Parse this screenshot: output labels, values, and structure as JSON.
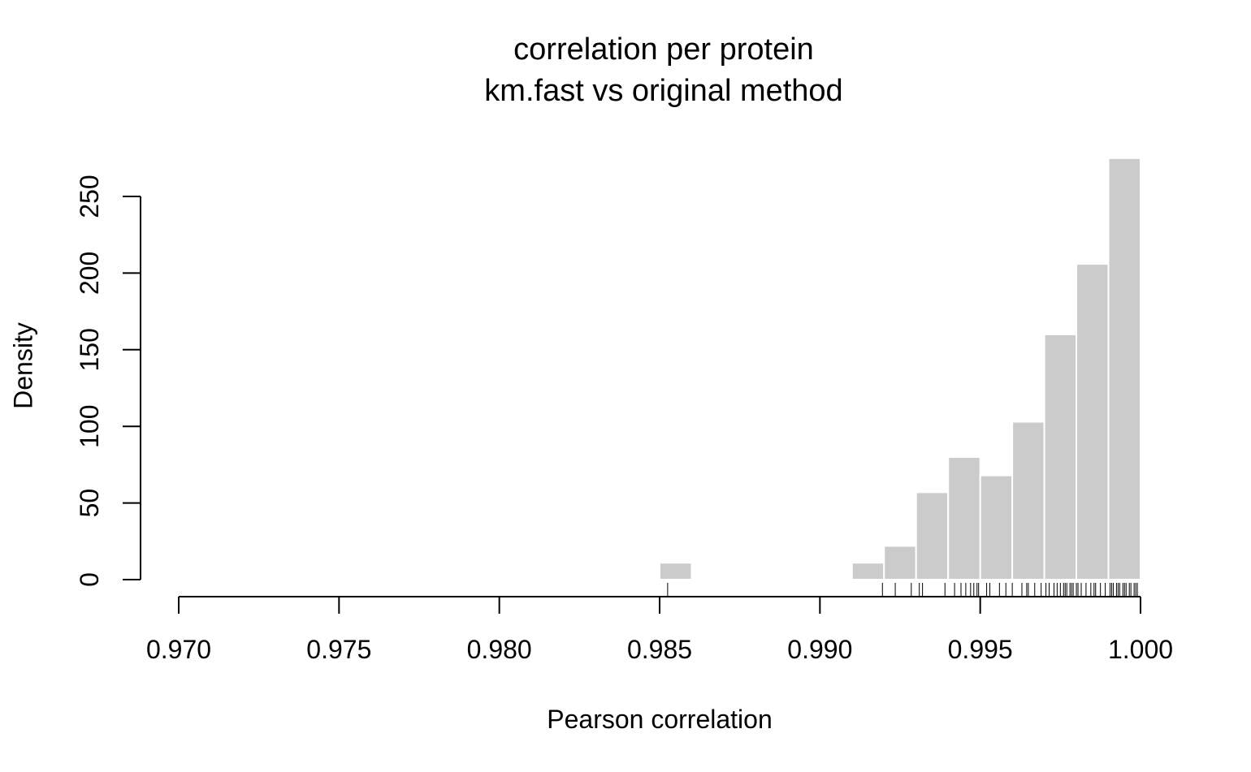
{
  "chart_data": {
    "type": "bar",
    "title": "correlation per protein",
    "subtitle": "km.fast vs original method",
    "xlabel": "Pearson correlation",
    "ylabel": "Density",
    "xlim": [
      0.97,
      1.0
    ],
    "ylim": [
      0,
      250
    ],
    "x_ticks": [
      "0.970",
      "0.975",
      "0.980",
      "0.985",
      "0.990",
      "0.995",
      "1.000"
    ],
    "y_ticks": [
      "0",
      "50",
      "100",
      "150",
      "200",
      "250"
    ],
    "bins": [
      {
        "start": 0.985,
        "end": 0.986,
        "value": 11
      },
      {
        "start": 0.991,
        "end": 0.992,
        "value": 11
      },
      {
        "start": 0.992,
        "end": 0.993,
        "value": 22
      },
      {
        "start": 0.993,
        "end": 0.994,
        "value": 57
      },
      {
        "start": 0.994,
        "end": 0.995,
        "value": 80
      },
      {
        "start": 0.995,
        "end": 0.996,
        "value": 68
      },
      {
        "start": 0.996,
        "end": 0.997,
        "value": 103
      },
      {
        "start": 0.997,
        "end": 0.998,
        "value": 160
      },
      {
        "start": 0.998,
        "end": 0.999,
        "value": 206
      },
      {
        "start": 0.999,
        "end": 1.0,
        "value": 275
      }
    ],
    "rug": [
      0.98525,
      0.99195,
      0.99235,
      0.99285,
      0.9931,
      0.9932,
      0.9939,
      0.9942,
      0.9944,
      0.99455,
      0.9947,
      0.9948,
      0.9949,
      0.99495,
      0.9952,
      0.9953,
      0.9956,
      0.9958,
      0.996,
      0.9963,
      0.99645,
      0.9965,
      0.9967,
      0.9969,
      0.99705,
      0.99715,
      0.9973,
      0.9974,
      0.9975,
      0.9976,
      0.99765,
      0.9977,
      0.9978,
      0.99785,
      0.9979,
      0.998,
      0.99805,
      0.99815,
      0.9983,
      0.99845,
      0.99855,
      0.9986,
      0.99875,
      0.9989,
      0.99905,
      0.9991,
      0.99915,
      0.99925,
      0.9993,
      0.99935,
      0.99945,
      0.9995,
      0.99955,
      0.99965,
      0.9997,
      0.9998,
      0.99985,
      0.9999
    ],
    "bar_color": "#cbcbcb",
    "bar_border": "#ffffff",
    "grid": false
  }
}
